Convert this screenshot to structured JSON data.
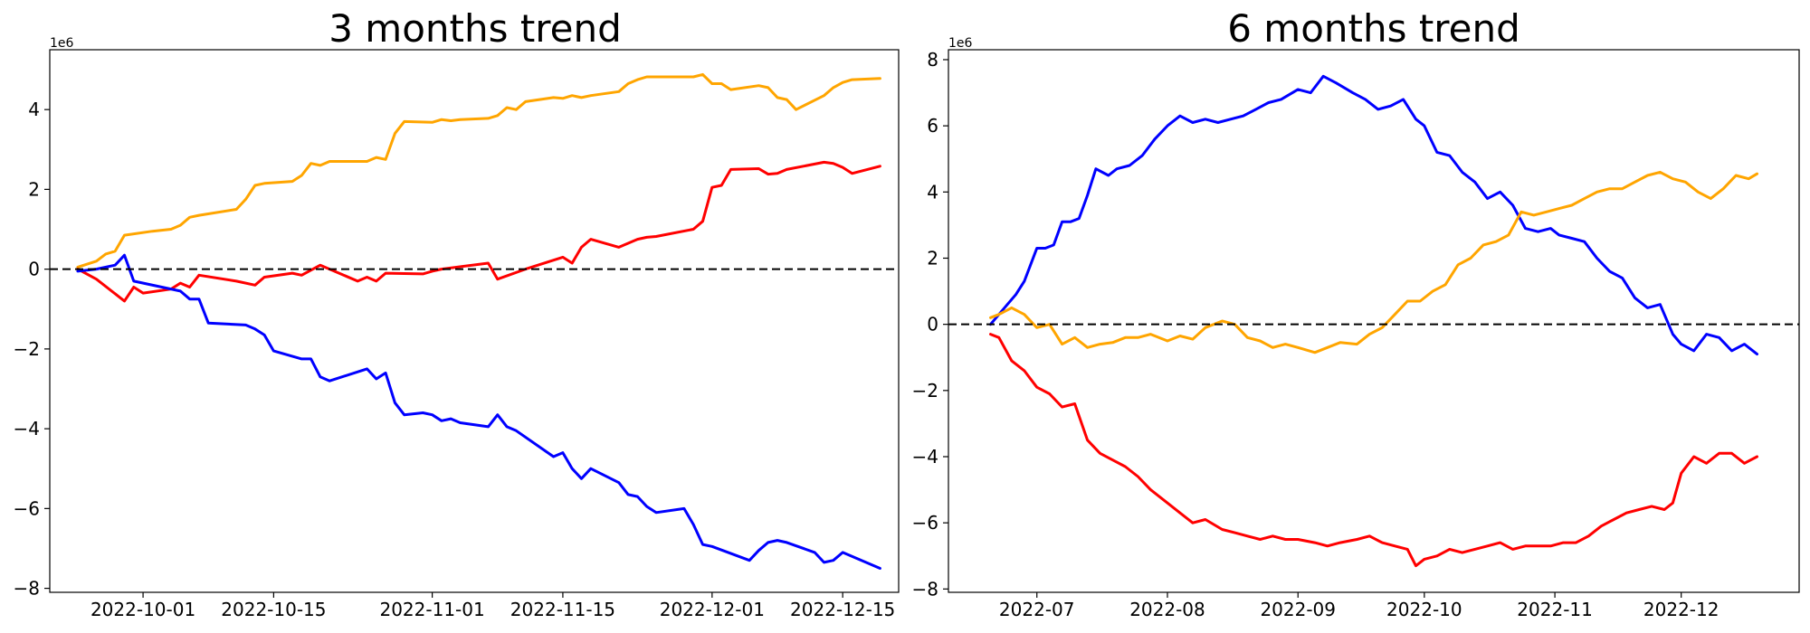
{
  "chart_data": [
    {
      "type": "line",
      "title": "3 months trend",
      "xlabel": "",
      "ylabel": "",
      "y_offset_text": "1e6",
      "x_axis_type": "date",
      "xlim": [
        "2022-09-21",
        "2022-12-21"
      ],
      "ylim": [
        -8.1,
        5.5
      ],
      "x_ticks": [
        "2022-10-01",
        "2022-10-15",
        "2022-11-01",
        "2022-11-15",
        "2022-12-01",
        "2022-12-15"
      ],
      "y_ticks": [
        -8,
        -6,
        -4,
        -2,
        0,
        2,
        4
      ],
      "reference_line": {
        "y": 0,
        "style": "dashed",
        "color": "#000000"
      },
      "grid": false,
      "legend": "none",
      "series": [
        {
          "color": "#FFA500",
          "x": [
            "2022-09-24",
            "2022-09-26",
            "2022-09-27",
            "2022-09-28",
            "2022-09-29",
            "2022-10-02",
            "2022-10-04",
            "2022-10-05",
            "2022-10-06",
            "2022-10-07",
            "2022-10-11",
            "2022-10-12",
            "2022-10-13",
            "2022-10-14",
            "2022-10-17",
            "2022-10-18",
            "2022-10-19",
            "2022-10-20",
            "2022-10-21",
            "2022-10-25",
            "2022-10-26",
            "2022-10-27",
            "2022-10-28",
            "2022-10-29",
            "2022-11-01",
            "2022-11-02",
            "2022-11-03",
            "2022-11-04",
            "2022-11-07",
            "2022-11-08",
            "2022-11-09",
            "2022-11-10",
            "2022-11-11",
            "2022-11-14",
            "2022-11-15",
            "2022-11-16",
            "2022-11-17",
            "2022-11-18",
            "2022-11-21",
            "2022-11-22",
            "2022-11-23",
            "2022-11-24",
            "2022-11-29",
            "2022-11-30",
            "2022-12-01",
            "2022-12-02",
            "2022-12-03",
            "2022-12-06",
            "2022-12-07",
            "2022-12-08",
            "2022-12-09",
            "2022-12-10",
            "2022-12-13",
            "2022-12-14",
            "2022-12-15",
            "2022-12-16",
            "2022-12-19"
          ],
          "values": [
            0.05,
            0.2,
            0.38,
            0.45,
            0.85,
            0.95,
            1.0,
            1.1,
            1.3,
            1.35,
            1.5,
            1.75,
            2.1,
            2.15,
            2.2,
            2.35,
            2.65,
            2.6,
            2.7,
            2.7,
            2.8,
            2.75,
            3.4,
            3.7,
            3.68,
            3.75,
            3.72,
            3.75,
            3.78,
            3.85,
            4.05,
            4.0,
            4.2,
            4.3,
            4.28,
            4.35,
            4.3,
            4.35,
            4.45,
            4.65,
            4.75,
            4.82,
            4.82,
            4.88,
            4.65,
            4.65,
            4.5,
            4.6,
            4.55,
            4.3,
            4.25,
            4.0,
            4.35,
            4.55,
            4.68,
            4.75,
            4.78
          ]
        },
        {
          "color": "#FF0000",
          "x": [
            "2022-09-24",
            "2022-09-26",
            "2022-09-29",
            "2022-09-30",
            "2022-10-01",
            "2022-10-04",
            "2022-10-05",
            "2022-10-06",
            "2022-10-07",
            "2022-10-11",
            "2022-10-13",
            "2022-10-14",
            "2022-10-17",
            "2022-10-18",
            "2022-10-20",
            "2022-10-24",
            "2022-10-25",
            "2022-10-26",
            "2022-10-27",
            "2022-10-31",
            "2022-11-01",
            "2022-11-02",
            "2022-11-07",
            "2022-11-08",
            "2022-11-11",
            "2022-11-15",
            "2022-11-16",
            "2022-11-17",
            "2022-11-18",
            "2022-11-21",
            "2022-11-23",
            "2022-11-24",
            "2022-11-25",
            "2022-11-29",
            "2022-11-30",
            "2022-12-01",
            "2022-12-02",
            "2022-12-03",
            "2022-12-06",
            "2022-12-07",
            "2022-12-08",
            "2022-12-09",
            "2022-12-13",
            "2022-12-14",
            "2022-12-15",
            "2022-12-16",
            "2022-12-19"
          ],
          "values": [
            0.0,
            -0.25,
            -0.8,
            -0.45,
            -0.6,
            -0.5,
            -0.35,
            -0.45,
            -0.15,
            -0.3,
            -0.4,
            -0.2,
            -0.1,
            -0.15,
            0.1,
            -0.3,
            -0.2,
            -0.3,
            -0.1,
            -0.12,
            -0.05,
            0.0,
            0.15,
            -0.25,
            0.0,
            0.3,
            0.15,
            0.55,
            0.75,
            0.55,
            0.75,
            0.8,
            0.82,
            1.0,
            1.2,
            2.05,
            2.1,
            2.5,
            2.52,
            2.38,
            2.4,
            2.5,
            2.68,
            2.65,
            2.55,
            2.4,
            2.58
          ]
        },
        {
          "color": "#0000FF",
          "x": [
            "2022-09-24",
            "2022-09-26",
            "2022-09-28",
            "2022-09-29",
            "2022-09-30",
            "2022-10-05",
            "2022-10-06",
            "2022-10-07",
            "2022-10-08",
            "2022-10-12",
            "2022-10-13",
            "2022-10-14",
            "2022-10-15",
            "2022-10-18",
            "2022-10-19",
            "2022-10-20",
            "2022-10-21",
            "2022-10-25",
            "2022-10-26",
            "2022-10-27",
            "2022-10-28",
            "2022-10-29",
            "2022-10-31",
            "2022-11-01",
            "2022-11-02",
            "2022-11-03",
            "2022-11-04",
            "2022-11-07",
            "2022-11-08",
            "2022-11-09",
            "2022-11-10",
            "2022-11-14",
            "2022-11-15",
            "2022-11-16",
            "2022-11-17",
            "2022-11-18",
            "2022-11-21",
            "2022-11-22",
            "2022-11-23",
            "2022-11-24",
            "2022-11-25",
            "2022-11-28",
            "2022-11-29",
            "2022-11-30",
            "2022-12-01",
            "2022-12-05",
            "2022-12-06",
            "2022-12-07",
            "2022-12-08",
            "2022-12-09",
            "2022-12-12",
            "2022-12-13",
            "2022-12-14",
            "2022-12-15",
            "2022-12-19"
          ],
          "values": [
            -0.05,
            0.0,
            0.1,
            0.35,
            -0.3,
            -0.55,
            -0.75,
            -0.75,
            -1.35,
            -1.4,
            -1.5,
            -1.65,
            -2.05,
            -2.25,
            -2.25,
            -2.7,
            -2.8,
            -2.5,
            -2.75,
            -2.6,
            -3.35,
            -3.65,
            -3.6,
            -3.65,
            -3.8,
            -3.75,
            -3.85,
            -3.95,
            -3.65,
            -3.95,
            -4.05,
            -4.7,
            -4.6,
            -5.0,
            -5.25,
            -5.0,
            -5.35,
            -5.65,
            -5.7,
            -5.95,
            -6.1,
            -6.0,
            -6.4,
            -6.9,
            -6.95,
            -7.3,
            -7.05,
            -6.85,
            -6.8,
            -6.85,
            -7.1,
            -7.35,
            -7.3,
            -7.1,
            -7.5
          ]
        }
      ]
    },
    {
      "type": "line",
      "title": "6 months trend",
      "xlabel": "",
      "ylabel": "",
      "y_offset_text": "1e6",
      "x_axis_type": "date",
      "xlim": [
        "2022-06-10",
        "2022-12-29"
      ],
      "ylim": [
        -8.1,
        8.3
      ],
      "x_ticks": [
        "2022-07",
        "2022-08",
        "2022-09",
        "2022-10",
        "2022-11",
        "2022-12"
      ],
      "y_ticks": [
        -8,
        -6,
        -4,
        -2,
        0,
        2,
        4,
        6,
        8
      ],
      "reference_line": {
        "y": 0,
        "style": "dashed",
        "color": "#000000"
      },
      "grid": false,
      "legend": "none",
      "series": [
        {
          "color": "#0000FF",
          "x": [
            "2022-06-20",
            "2022-06-22",
            "2022-06-24",
            "2022-06-26",
            "2022-06-28",
            "2022-07-01",
            "2022-07-03",
            "2022-07-05",
            "2022-07-07",
            "2022-07-09",
            "2022-07-11",
            "2022-07-13",
            "2022-07-15",
            "2022-07-18",
            "2022-07-20",
            "2022-07-23",
            "2022-07-26",
            "2022-07-29",
            "2022-08-01",
            "2022-08-04",
            "2022-08-07",
            "2022-08-10",
            "2022-08-13",
            "2022-08-16",
            "2022-08-19",
            "2022-08-22",
            "2022-08-25",
            "2022-08-28",
            "2022-09-01",
            "2022-09-04",
            "2022-09-07",
            "2022-09-10",
            "2022-09-14",
            "2022-09-17",
            "2022-09-20",
            "2022-09-23",
            "2022-09-26",
            "2022-09-29",
            "2022-10-01",
            "2022-10-04",
            "2022-10-07",
            "2022-10-10",
            "2022-10-13",
            "2022-10-16",
            "2022-10-19",
            "2022-10-22",
            "2022-10-25",
            "2022-10-28",
            "2022-10-31",
            "2022-11-02",
            "2022-11-05",
            "2022-11-08",
            "2022-11-11",
            "2022-11-14",
            "2022-11-17",
            "2022-11-20",
            "2022-11-23",
            "2022-11-26",
            "2022-11-29",
            "2022-12-01",
            "2022-12-04",
            "2022-12-07",
            "2022-12-10",
            "2022-12-13",
            "2022-12-16",
            "2022-12-19"
          ],
          "values": [
            0.0,
            0.3,
            0.6,
            0.9,
            1.3,
            2.3,
            2.3,
            2.4,
            3.1,
            3.1,
            3.2,
            3.9,
            4.7,
            4.5,
            4.7,
            4.8,
            5.1,
            5.6,
            6.0,
            6.3,
            6.1,
            6.2,
            6.1,
            6.2,
            6.3,
            6.5,
            6.7,
            6.8,
            7.1,
            7.0,
            7.5,
            7.3,
            7.0,
            6.8,
            6.5,
            6.6,
            6.8,
            6.2,
            6.0,
            5.2,
            5.1,
            4.6,
            4.3,
            3.8,
            4.0,
            3.6,
            2.9,
            2.8,
            2.9,
            2.7,
            2.6,
            2.5,
            2.0,
            1.6,
            1.4,
            0.8,
            0.5,
            0.6,
            -0.3,
            -0.6,
            -0.8,
            -0.3,
            -0.4,
            -0.8,
            -0.6,
            -0.9
          ]
        },
        {
          "color": "#FFA500",
          "x": [
            "2022-06-20",
            "2022-06-22",
            "2022-06-25",
            "2022-06-28",
            "2022-07-01",
            "2022-07-04",
            "2022-07-07",
            "2022-07-10",
            "2022-07-13",
            "2022-07-16",
            "2022-07-19",
            "2022-07-22",
            "2022-07-25",
            "2022-07-28",
            "2022-08-01",
            "2022-08-04",
            "2022-08-07",
            "2022-08-10",
            "2022-08-14",
            "2022-08-17",
            "2022-08-20",
            "2022-08-23",
            "2022-08-26",
            "2022-08-29",
            "2022-09-01",
            "2022-09-05",
            "2022-09-08",
            "2022-09-11",
            "2022-09-15",
            "2022-09-18",
            "2022-09-21",
            "2022-09-24",
            "2022-09-27",
            "2022-09-30",
            "2022-10-03",
            "2022-10-06",
            "2022-10-09",
            "2022-10-12",
            "2022-10-15",
            "2022-10-18",
            "2022-10-21",
            "2022-10-24",
            "2022-10-27",
            "2022-10-30",
            "2022-11-02",
            "2022-11-05",
            "2022-11-08",
            "2022-11-11",
            "2022-11-14",
            "2022-11-17",
            "2022-11-20",
            "2022-11-23",
            "2022-11-26",
            "2022-11-29",
            "2022-12-02",
            "2022-12-05",
            "2022-12-08",
            "2022-12-11",
            "2022-12-14",
            "2022-12-17",
            "2022-12-19"
          ],
          "values": [
            0.2,
            0.3,
            0.5,
            0.3,
            -0.1,
            0.0,
            -0.6,
            -0.4,
            -0.7,
            -0.6,
            -0.55,
            -0.4,
            -0.4,
            -0.3,
            -0.5,
            -0.35,
            -0.45,
            -0.1,
            0.1,
            0.0,
            -0.4,
            -0.5,
            -0.7,
            -0.6,
            -0.7,
            -0.85,
            -0.7,
            -0.55,
            -0.6,
            -0.3,
            -0.1,
            0.3,
            0.7,
            0.7,
            1.0,
            1.2,
            1.8,
            2.0,
            2.4,
            2.5,
            2.7,
            3.4,
            3.3,
            3.4,
            3.5,
            3.6,
            3.8,
            4.0,
            4.1,
            4.1,
            4.3,
            4.5,
            4.6,
            4.4,
            4.3,
            4.0,
            3.8,
            4.1,
            4.5,
            4.4,
            4.55
          ]
        },
        {
          "color": "#FF0000",
          "x": [
            "2022-06-20",
            "2022-06-22",
            "2022-06-25",
            "2022-06-28",
            "2022-07-01",
            "2022-07-04",
            "2022-07-07",
            "2022-07-10",
            "2022-07-13",
            "2022-07-16",
            "2022-07-19",
            "2022-07-22",
            "2022-07-25",
            "2022-07-28",
            "2022-08-01",
            "2022-08-04",
            "2022-08-07",
            "2022-08-10",
            "2022-08-14",
            "2022-08-17",
            "2022-08-20",
            "2022-08-23",
            "2022-08-26",
            "2022-08-29",
            "2022-09-01",
            "2022-09-05",
            "2022-09-08",
            "2022-09-11",
            "2022-09-15",
            "2022-09-18",
            "2022-09-21",
            "2022-09-24",
            "2022-09-27",
            "2022-09-29",
            "2022-10-01",
            "2022-10-04",
            "2022-10-07",
            "2022-10-10",
            "2022-10-13",
            "2022-10-16",
            "2022-10-19",
            "2022-10-22",
            "2022-10-25",
            "2022-10-28",
            "2022-10-31",
            "2022-11-03",
            "2022-11-06",
            "2022-11-09",
            "2022-11-12",
            "2022-11-15",
            "2022-11-18",
            "2022-11-21",
            "2022-11-24",
            "2022-11-27",
            "2022-11-29",
            "2022-12-01",
            "2022-12-04",
            "2022-12-07",
            "2022-12-10",
            "2022-12-13",
            "2022-12-16",
            "2022-12-19"
          ],
          "values": [
            -0.3,
            -0.4,
            -1.1,
            -1.4,
            -1.9,
            -2.1,
            -2.5,
            -2.4,
            -3.5,
            -3.9,
            -4.1,
            -4.3,
            -4.6,
            -5.0,
            -5.4,
            -5.7,
            -6.0,
            -5.9,
            -6.2,
            -6.3,
            -6.4,
            -6.5,
            -6.4,
            -6.5,
            -6.5,
            -6.6,
            -6.7,
            -6.6,
            -6.5,
            -6.4,
            -6.6,
            -6.7,
            -6.8,
            -7.3,
            -7.1,
            -7.0,
            -6.8,
            -6.9,
            -6.8,
            -6.7,
            -6.6,
            -6.8,
            -6.7,
            -6.7,
            -6.7,
            -6.6,
            -6.6,
            -6.4,
            -6.1,
            -5.9,
            -5.7,
            -5.6,
            -5.5,
            -5.6,
            -5.4,
            -4.5,
            -4.0,
            -4.2,
            -3.9,
            -3.9,
            -4.2,
            -4.0
          ]
        }
      ]
    }
  ]
}
